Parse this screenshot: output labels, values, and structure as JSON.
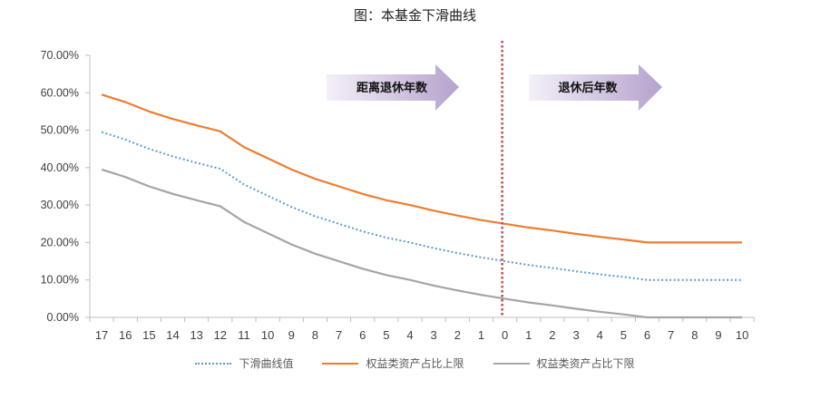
{
  "title": "图：本基金下滑曲线",
  "colors": {
    "glide": "#5B9BD5",
    "upper": "#ED7D31",
    "lower": "#A5A5A5",
    "divider": "#C0504D",
    "arrow_start": "#F4F0F8",
    "arrow_end": "#B4A2CC"
  },
  "annotations": {
    "before_retirement": "距离退休年数",
    "after_retirement": "退休后年数"
  },
  "legend": [
    {
      "label": "下滑曲线值",
      "style": "dotted",
      "color": "#5B9BD5"
    },
    {
      "label": "权益类资产占比上限",
      "style": "solid",
      "color": "#ED7D31"
    },
    {
      "label": "权益类资产占比下限",
      "style": "solid",
      "color": "#A5A5A5"
    }
  ],
  "chart_data": {
    "type": "line",
    "title": "图：本基金下滑曲线",
    "xlabel": "",
    "ylabel": "",
    "categories": [
      "17",
      "16",
      "15",
      "14",
      "13",
      "12",
      "11",
      "10",
      "9",
      "8",
      "7",
      "6",
      "5",
      "4",
      "3",
      "2",
      "1",
      "0",
      "1",
      "2",
      "3",
      "4",
      "5",
      "6",
      "7",
      "8",
      "9",
      "10"
    ],
    "series": [
      {
        "name": "下滑曲线值",
        "style": "dotted",
        "values": [
          49.5,
          47.5,
          45,
          43,
          41.3,
          39.7,
          35.5,
          32.5,
          29.5,
          27,
          25,
          23,
          21.3,
          20,
          18.5,
          17.2,
          16,
          15,
          14,
          13.2,
          12.3,
          11.5,
          10.8,
          10,
          10,
          10,
          10,
          10
        ]
      },
      {
        "name": "权益类资产占比上限",
        "style": "solid",
        "values": [
          59.5,
          57.5,
          55,
          53,
          51.3,
          49.7,
          45.5,
          42.5,
          39.5,
          37,
          35,
          33,
          31.3,
          30,
          28.5,
          27.2,
          26,
          25,
          24,
          23.2,
          22.3,
          21.5,
          20.8,
          20,
          20,
          20,
          20,
          20
        ]
      },
      {
        "name": "权益类资产占比下限",
        "style": "solid",
        "values": [
          39.5,
          37.5,
          35,
          33,
          31.3,
          29.7,
          25.5,
          22.5,
          19.5,
          17,
          15,
          13,
          11.3,
          10,
          8.5,
          7.2,
          6,
          5,
          4,
          3.2,
          2.3,
          1.5,
          0.8,
          0,
          0,
          0,
          0,
          0
        ]
      }
    ],
    "yticks": [
      "0.00%",
      "10.00%",
      "20.00%",
      "30.00%",
      "40.00%",
      "50.00%",
      "60.00%",
      "70.00%"
    ],
    "ylim": [
      0,
      70
    ],
    "grid": false,
    "legend_position": "bottom",
    "vertical_marker": {
      "at_category_index": 17,
      "label": "0",
      "style": "dotted"
    },
    "annotations": [
      "距离退休年数",
      "退休后年数"
    ]
  }
}
